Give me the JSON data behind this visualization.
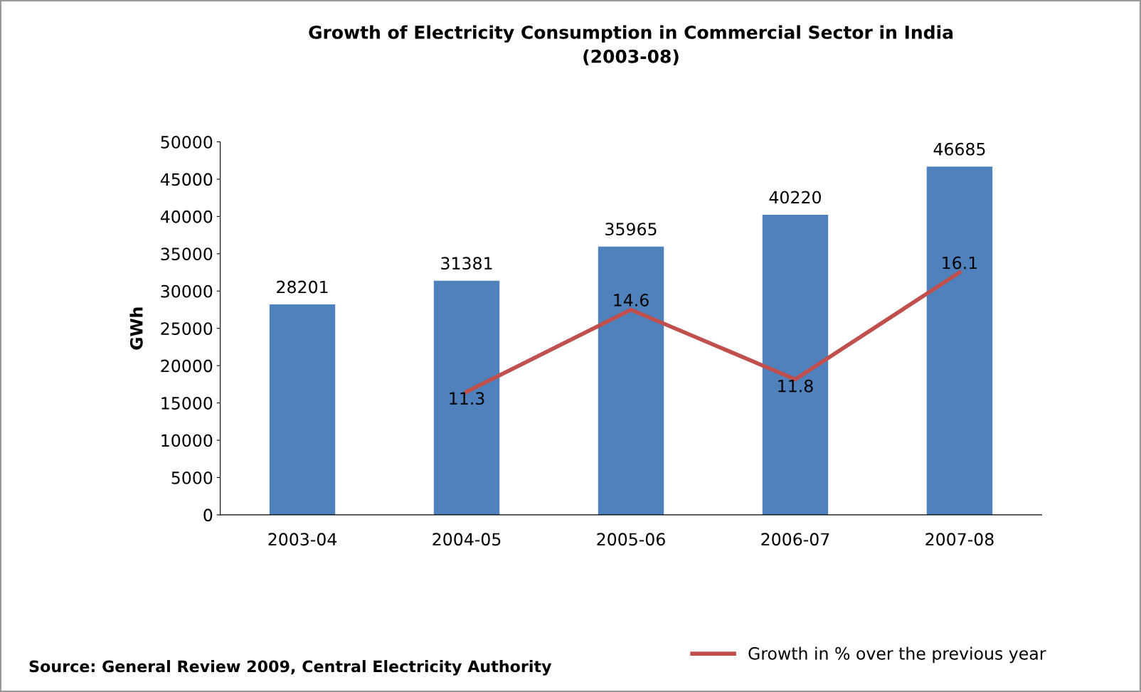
{
  "chart_data": {
    "type": "bar",
    "title": "Growth of Electricity Consumption in Commercial Sector in India\n(2003-08)",
    "ylabel": "GWh",
    "categories": [
      "2003-04",
      "2004-05",
      "2005-06",
      "2006-07",
      "2007-08"
    ],
    "series": [
      {
        "color": "#4f81bd",
        "values": [
          28201,
          31381,
          35965,
          40220,
          46685
        ]
      },
      {
        "type": "line",
        "axis": "y2",
        "name": "Growth in % over the previous year",
        "color": "#c0504d",
        "values": [
          null,
          11.3,
          14.6,
          11.8,
          16.1
        ]
      }
    ],
    "ylim": [
      0,
      50000
    ],
    "yticks": [
      0,
      5000,
      10000,
      15000,
      20000,
      25000,
      30000,
      35000,
      40000,
      45000,
      50000
    ],
    "y2lim": [
      6.35,
      21.35
    ],
    "data_labels": true,
    "grid": false,
    "legend": "bottom right",
    "marker": "none",
    "annotations": [
      "Source: General Review 2009, Central Electricity Authority"
    ]
  }
}
